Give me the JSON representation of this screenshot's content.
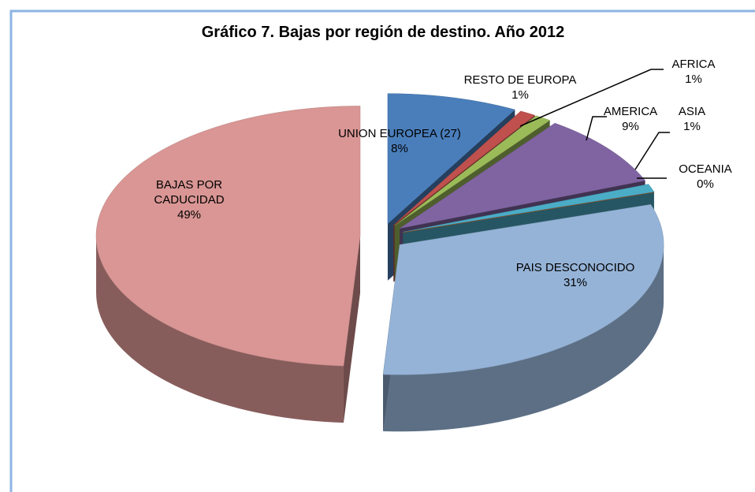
{
  "chart_data": {
    "type": "pie",
    "title": "Gráfico 7. Bajas por región de destino. Año 2012",
    "categories": [
      "UNION EUROPEA (27)",
      "RESTO DE EUROPA",
      "AFRICA",
      "AMERICA",
      "ASIA",
      "OCEANIA",
      "PAIS DESCONOCIDO",
      "BAJAS POR CADUCIDAD"
    ],
    "values": [
      8,
      1,
      1,
      9,
      1,
      0,
      31,
      49
    ],
    "value_labels": [
      "8%",
      "1%",
      "1%",
      "9%",
      "1%",
      "0%",
      "31%",
      "49%"
    ],
    "colors": [
      "#4a7ebb",
      "#c0504d",
      "#9bbb59",
      "#8064a2",
      "#4bacc6",
      "#b3561e",
      "#95b3d7",
      "#d99694"
    ]
  }
}
